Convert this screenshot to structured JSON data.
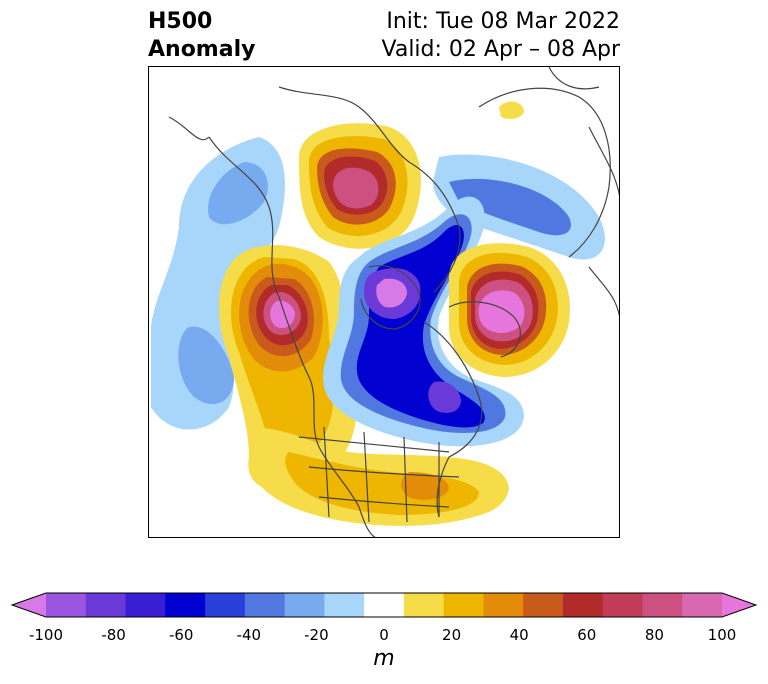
{
  "header": {
    "title_line1": "H500",
    "title_line2": "Anomaly",
    "init_text": "Init: Tue 08 Mar 2022",
    "valid_text": "Valid: 02 Apr – 08 Apr"
  },
  "colorbar": {
    "unit": "m",
    "ticks": [
      "-100",
      "-80",
      "-60",
      "-40",
      "-20",
      "0",
      "20",
      "40",
      "60",
      "80",
      "100"
    ],
    "colors": [
      "#d77ae8",
      "#9b55e0",
      "#6a3ad8",
      "#3a1ed6",
      "#0000d0",
      "#2a3ed8",
      "#5078e0",
      "#78aaf0",
      "#a8d6fa",
      "#ffffff",
      "#f6dc48",
      "#eeb600",
      "#e28c0a",
      "#c85a1c",
      "#b22a2a",
      "#c23c5a",
      "#cc5080",
      "#d868b0",
      "#e676dc"
    ]
  },
  "map_legend_colors": {
    "pos_strong": "#e676dc",
    "neg_strong": "#6a3ad8",
    "coast": "#444444"
  }
}
